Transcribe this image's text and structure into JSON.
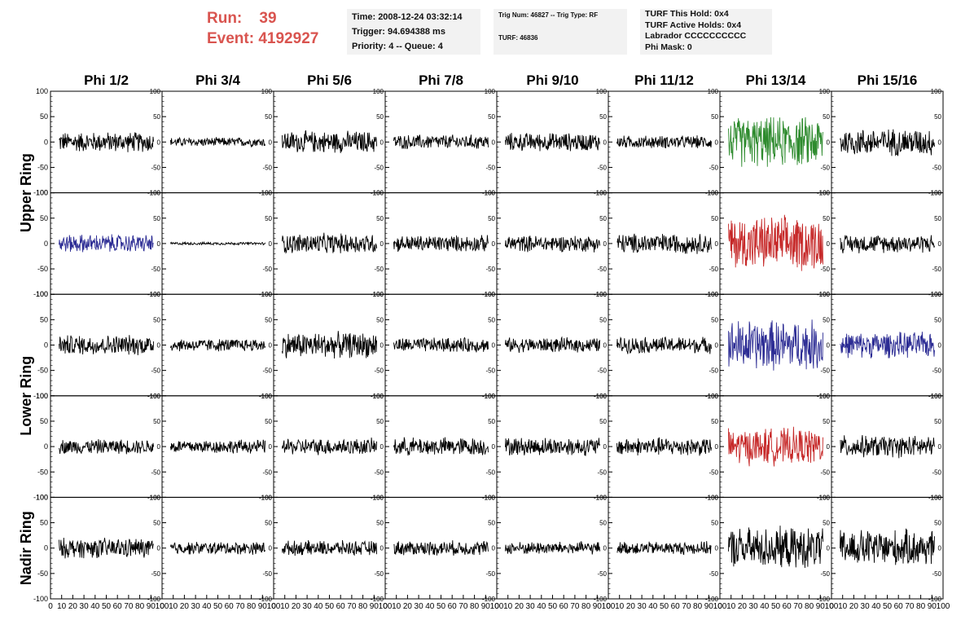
{
  "header": {
    "run_label": "Run:",
    "run_value": "39",
    "event_label": "Event:",
    "event_value": "4192927",
    "time_info": [
      "Time: 2008-12-24 03:32:14",
      "Trigger: 94.694388 ms",
      "Priority: 4 -- Queue: 4"
    ],
    "trig_info": [
      "Trig Num: 46827 -- Trig Type: RF",
      "TURF: 46836"
    ],
    "turf_info": [
      "TURF This Hold: 0x4",
      "TURF Active Holds: 0x4",
      "Labrador CCCCCCCCCC",
      "Phi Mask: 0"
    ]
  },
  "colors": {
    "header_red": "#d9544f",
    "trace_default": "#000000",
    "trace_green": "#2e8b2e",
    "trace_red": "#c62828",
    "trace_blue": "#2c2c94",
    "info_bg": "#f2f2f2"
  },
  "chart_data": {
    "type": "line",
    "columns": [
      "Phi 1/2",
      "Phi 3/4",
      "Phi 5/6",
      "Phi 7/8",
      "Phi 9/10",
      "Phi 11/12",
      "Phi 13/14",
      "Phi 15/16"
    ],
    "ring_labels": [
      {
        "label": "Upper Ring",
        "panel_rows": [
          0,
          1
        ]
      },
      {
        "label": "Lower Ring",
        "panel_rows": [
          2,
          3
        ]
      },
      {
        "label": "Nadir Ring",
        "panel_rows": [
          4
        ]
      }
    ],
    "ylim": [
      -100,
      100
    ],
    "y_ticks": [
      100,
      50,
      0,
      -50,
      -100
    ],
    "y_tick_labels": [
      "100",
      "50",
      "0",
      "-50",
      "-100"
    ],
    "xlim": [
      0,
      100
    ],
    "x_ticks": [
      0,
      10,
      20,
      30,
      40,
      50,
      60,
      70,
      80,
      90,
      100
    ],
    "x_tick_labels": [
      "0",
      "10",
      "20",
      "30",
      "40",
      "50",
      "60",
      "70",
      "80",
      "90",
      "100"
    ],
    "samples_per_trace": 200,
    "grid": false,
    "traces": [
      [
        {
          "amp": 22,
          "color": "black"
        },
        {
          "amp": 10,
          "color": "black"
        },
        {
          "amp": 24,
          "color": "black"
        },
        {
          "amp": 16,
          "color": "black"
        },
        {
          "amp": 20,
          "color": "black"
        },
        {
          "amp": 14,
          "color": "black"
        },
        {
          "amp": 55,
          "color": "green"
        },
        {
          "amp": 30,
          "color": "black"
        }
      ],
      [
        {
          "amp": 20,
          "color": "blue"
        },
        {
          "amp": 3,
          "color": "black"
        },
        {
          "amp": 22,
          "color": "black"
        },
        {
          "amp": 18,
          "color": "black"
        },
        {
          "amp": 18,
          "color": "black"
        },
        {
          "amp": 22,
          "color": "black"
        },
        {
          "amp": 60,
          "color": "red"
        },
        {
          "amp": 20,
          "color": "black"
        }
      ],
      [
        {
          "amp": 22,
          "color": "black"
        },
        {
          "amp": 14,
          "color": "black"
        },
        {
          "amp": 28,
          "color": "black"
        },
        {
          "amp": 16,
          "color": "black"
        },
        {
          "amp": 16,
          "color": "black"
        },
        {
          "amp": 18,
          "color": "black"
        },
        {
          "amp": 55,
          "color": "blue"
        },
        {
          "amp": 28,
          "color": "blue"
        }
      ],
      [
        {
          "amp": 16,
          "color": "black"
        },
        {
          "amp": 15,
          "color": "black"
        },
        {
          "amp": 18,
          "color": "black"
        },
        {
          "amp": 20,
          "color": "black"
        },
        {
          "amp": 20,
          "color": "black"
        },
        {
          "amp": 20,
          "color": "black"
        },
        {
          "amp": 40,
          "color": "red"
        },
        {
          "amp": 24,
          "color": "black"
        }
      ],
      [
        {
          "amp": 22,
          "color": "black"
        },
        {
          "amp": 14,
          "color": "black"
        },
        {
          "amp": 16,
          "color": "black"
        },
        {
          "amp": 16,
          "color": "black"
        },
        {
          "amp": 14,
          "color": "black"
        },
        {
          "amp": 14,
          "color": "black"
        },
        {
          "amp": 45,
          "color": "black"
        },
        {
          "amp": 40,
          "color": "black"
        }
      ]
    ]
  }
}
